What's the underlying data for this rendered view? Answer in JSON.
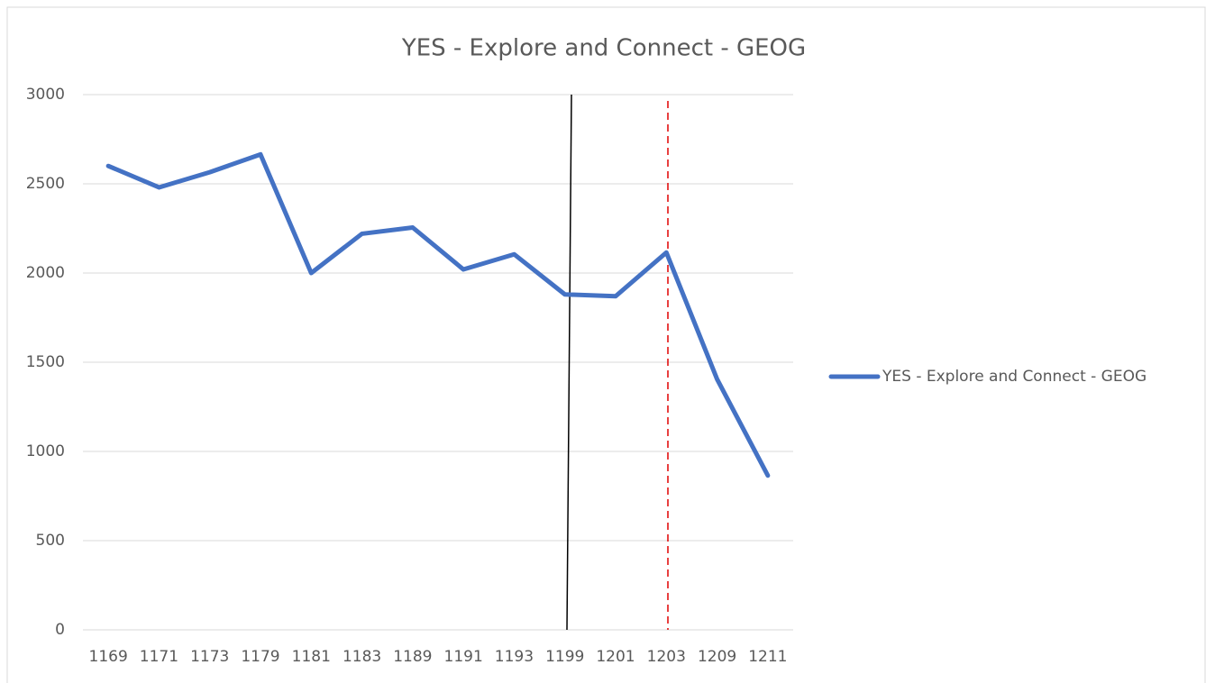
{
  "chart_data": {
    "type": "line",
    "title": "YES - Explore and Connect - GEOG",
    "categories": [
      "1169",
      "1171",
      "1173",
      "1179",
      "1181",
      "1183",
      "1189",
      "1191",
      "1193",
      "1199",
      "1201",
      "1203",
      "1209",
      "1211"
    ],
    "series": [
      {
        "name": "YES - Explore and Connect - GEOG",
        "color": "#4472c4",
        "values": [
          2600,
          2480,
          2565,
          2665,
          2000,
          2220,
          2255,
          2020,
          2105,
          1880,
          1870,
          2115,
          1405,
          865
        ]
      }
    ],
    "ylim": [
      0,
      3000
    ],
    "yticks": [
      0,
      500,
      1000,
      1500,
      2000,
      2500,
      3000
    ],
    "grid": true,
    "legend": "right"
  }
}
